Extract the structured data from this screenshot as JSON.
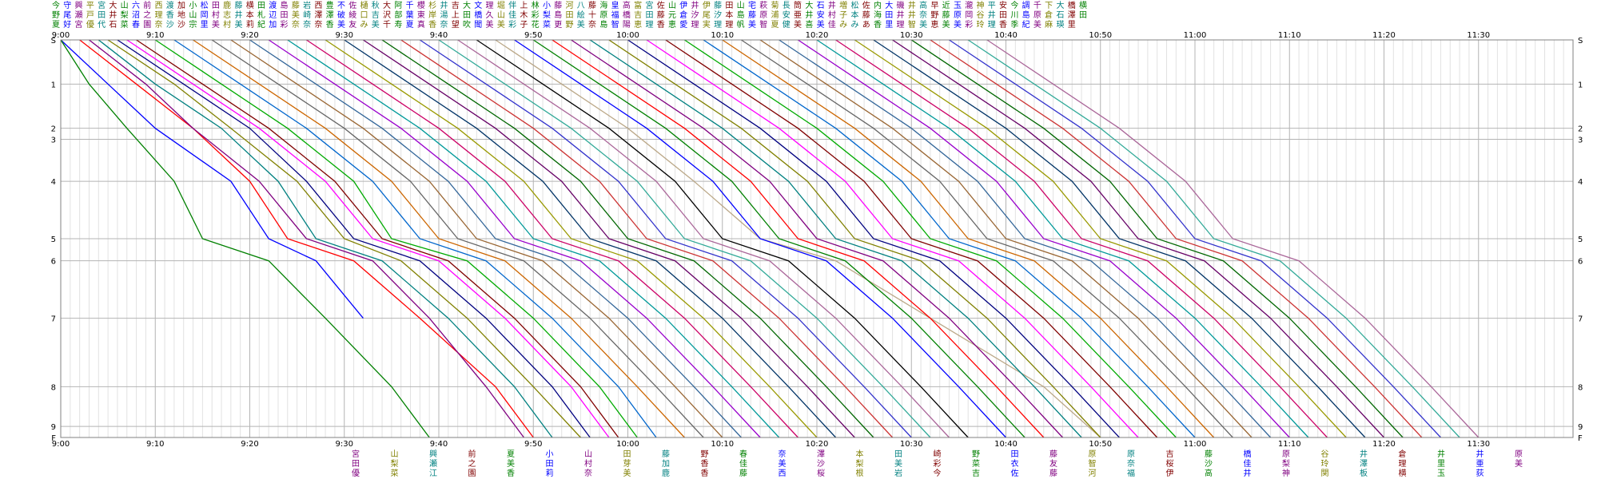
{
  "chart_data": {
    "type": "line",
    "title": "",
    "xlabel": "",
    "ylabel": "",
    "x_ticks": [
      "9:00",
      "9:10",
      "9:20",
      "9:30",
      "9:40",
      "9:50",
      "10:00",
      "10:10",
      "10:20",
      "10:30",
      "10:40",
      "10:50",
      "11:00",
      "11:10",
      "11:20",
      "11:30"
    ],
    "x_range_minutes": [
      0,
      160
    ],
    "y_stations": [
      {
        "label": "S",
        "pos": 0
      },
      {
        "label": "1",
        "pos": 1
      },
      {
        "label": "2",
        "pos": 2
      },
      {
        "label": "3",
        "pos": 2.25
      },
      {
        "label": "4",
        "pos": 3.2
      },
      {
        "label": "5",
        "pos": 4.5
      },
      {
        "label": "6",
        "pos": 5
      },
      {
        "label": "7",
        "pos": 6.3
      },
      {
        "label": "8",
        "pos": 7.85
      },
      {
        "label": "9",
        "pos": 8.75
      },
      {
        "label": "F",
        "pos": 9
      }
    ],
    "y_range": [
      0,
      9
    ],
    "grid": true,
    "top_name_labels": [
      "今",
      "野",
      "夏",
      "守",
      "尾",
      "好",
      "興",
      "瀬",
      "宮",
      "平",
      "戸",
      "優",
      "宮",
      "田",
      "代",
      "大",
      "井",
      "石",
      "山",
      "梨",
      "菜",
      "六",
      "沼",
      "春",
      "前",
      "之",
      "園",
      "西",
      "理",
      "奈",
      "渡",
      "香",
      "沙",
      "加",
      "地",
      "沙",
      "小",
      "山",
      "宗",
      "松",
      "岡",
      "里",
      "田",
      "村",
      "美",
      "鹿",
      "志",
      "村",
      "藤",
      "井",
      "美",
      "横",
      "本",
      "莉",
      "田",
      "札",
      "紀",
      "渡",
      "辺",
      "加",
      "島",
      "田",
      "彩",
      "藤",
      "美",
      "奈",
      "岩",
      "崎",
      "奈",
      "西",
      "澤",
      "奈",
      "豊",
      "澤",
      "香",
      "不",
      "破",
      "美",
      "佐",
      "綾",
      "友",
      "樋",
      "口",
      "み",
      "秋",
      "吉",
      "美",
      "大",
      "沢",
      "千",
      "阿",
      "部",
      "寿",
      "千",
      "葉",
      "夏",
      "櫻",
      "東",
      "真",
      "杉",
      "岸",
      "香",
      "井",
      "湯",
      "奈",
      "吉",
      "上",
      "望",
      "大",
      "田",
      "吹",
      "文",
      "橋",
      "聞",
      "理",
      "久",
      "美",
      "堀",
      "山",
      "美",
      "伴",
      "佳",
      "彩",
      "上",
      "木",
      "子",
      "林",
      "彩",
      "花",
      "小",
      "梨",
      "菜",
      "藤",
      "島",
      "更",
      "河",
      "田",
      "野",
      "八",
      "絵",
      "美",
      "藤",
      "十",
      "奈",
      "海",
      "原",
      "島",
      "皇",
      "福",
      "智",
      "高",
      "橋",
      "陽",
      "富",
      "吉",
      "恵",
      "宮",
      "田",
      "理",
      "佐",
      "藤",
      "香",
      "山",
      "元",
      "恵",
      "伊",
      "倉",
      "愛",
      "井",
      "汐",
      "理",
      "伊",
      "尾",
      "実",
      "藤",
      "汐",
      "理",
      "田",
      "本",
      "理",
      "山",
      "島",
      "帆",
      "宅",
      "藤",
      "美",
      "萩",
      "原",
      "智",
      "菊",
      "浦",
      "夏",
      "長",
      "安",
      "健",
      "筒",
      "亜",
      "美",
      "大",
      "井",
      "喜",
      "石",
      "安",
      "美",
      "井",
      "村",
      "佳",
      "増",
      "子",
      "み",
      "松",
      "本",
      "み",
      "佐",
      "藤",
      "あ",
      "内",
      "海",
      "香",
      "大",
      "田",
      "里",
      "磯",
      "井",
      "理",
      "井",
      "井",
      "智",
      "高",
      "奈",
      "美",
      "早",
      "野",
      "恵",
      "近",
      "藤",
      "美",
      "玉",
      "原",
      "美",
      "瀧",
      "岡",
      "彩",
      "神",
      "谷",
      "玲",
      "平",
      "井",
      "理",
      "安",
      "田",
      "香",
      "今",
      "川",
      "季",
      "調",
      "島",
      "紀",
      "千",
      "原",
      "美",
      "下",
      "倉",
      "麻",
      "大",
      "石",
      "瑛",
      "橋",
      "澤",
      "里",
      "横",
      "田"
    ],
    "bottom_name_labels": [
      "宮",
      "田",
      "優",
      "山",
      "梨",
      "菜",
      "興",
      "瀬",
      "江",
      "前",
      "之",
      "園",
      "夏",
      "美",
      "香",
      "小",
      "田",
      "莉",
      "山",
      "村",
      "奈",
      "田",
      "芽",
      "美",
      "藤",
      "加",
      "鹿",
      "野",
      "香",
      "香",
      "春",
      "佳",
      "藤",
      "奈",
      "美",
      "西",
      "澤",
      "沙",
      "桜",
      "本",
      "梨",
      "根",
      "田",
      "美",
      "岩",
      "崎",
      "彩",
      "今",
      "野",
      "菜",
      "吉",
      "田",
      "衣",
      "佐",
      "藤",
      "友",
      "藤",
      "原",
      "智",
      "河",
      "原",
      "奈",
      "福",
      "吉",
      "桜",
      "伊",
      "藤",
      "沙",
      "高",
      "橋",
      "佳",
      "井",
      "原",
      "梨",
      "神",
      "谷",
      "玲",
      "関",
      "井",
      "澤",
      "板",
      "倉",
      "理",
      "横",
      "井",
      "里",
      "玉",
      "井",
      "亜",
      "荻",
      "原",
      "美"
    ],
    "series": [
      {
        "color": "#0000ff",
        "times": [
          0,
          5,
          10,
          18,
          22,
          27,
          32
        ]
      },
      {
        "color": "#008000",
        "times": [
          0,
          3,
          7,
          12,
          15,
          22,
          28,
          35,
          39
        ]
      },
      {
        "color": "#ff0000",
        "times": [
          2,
          8,
          14,
          20,
          24,
          31,
          38,
          46,
          50
        ]
      },
      {
        "color": "#800080",
        "times": [
          3,
          9,
          14,
          21,
          26,
          33,
          39,
          45,
          49
        ]
      },
      {
        "color": "#008080",
        "times": [
          4,
          10,
          17,
          23,
          27,
          34,
          41,
          48,
          52
        ]
      },
      {
        "color": "#808000",
        "times": [
          5,
          12,
          18,
          25,
          30,
          36,
          43,
          50,
          55
        ]
      },
      {
        "color": "#000080",
        "times": [
          6,
          13,
          20,
          26,
          31,
          38,
          45,
          52,
          56
        ]
      },
      {
        "color": "#ff00ff",
        "times": [
          7,
          14,
          21,
          28,
          33,
          40,
          47,
          54,
          58
        ]
      },
      {
        "color": "#800000",
        "times": [
          8,
          15,
          22,
          29,
          34,
          41,
          48,
          55,
          59
        ]
      },
      {
        "color": "#00aa00",
        "times": [
          10,
          17,
          24,
          31,
          35,
          43,
          50,
          57,
          61
        ]
      },
      {
        "color": "#0066cc",
        "times": [
          12,
          19,
          26,
          33,
          38,
          45,
          52,
          59,
          63
        ]
      },
      {
        "color": "#cc6600",
        "times": [
          14,
          21,
          28,
          35,
          40,
          47,
          54,
          61,
          66
        ]
      },
      {
        "color": "#666666",
        "times": [
          16,
          23,
          30,
          37,
          42,
          49,
          56,
          63,
          68
        ]
      },
      {
        "color": "#996633",
        "times": [
          18,
          25,
          32,
          39,
          44,
          51,
          58,
          65,
          70
        ]
      },
      {
        "color": "#336699",
        "times": [
          20,
          27,
          34,
          41,
          46,
          53,
          60,
          67,
          72
        ]
      },
      {
        "color": "#9900cc",
        "times": [
          22,
          29,
          36,
          43,
          48,
          55,
          62,
          69,
          74
        ]
      },
      {
        "color": "#009999",
        "times": [
          24,
          31,
          38,
          45,
          50,
          57,
          64,
          71,
          76
        ]
      },
      {
        "color": "#cc0066",
        "times": [
          26,
          33,
          40,
          47,
          52,
          59,
          66,
          73,
          78
        ]
      },
      {
        "color": "#999900",
        "times": [
          28,
          35,
          42,
          49,
          54,
          61,
          68,
          75,
          80
        ]
      },
      {
        "color": "#003366",
        "times": [
          30,
          37,
          44,
          51,
          56,
          63,
          70,
          77,
          82
        ]
      },
      {
        "color": "#660066",
        "times": [
          32,
          39,
          46,
          53,
          58,
          65,
          72,
          79,
          84
        ]
      },
      {
        "color": "#006600",
        "times": [
          34,
          41,
          48,
          55,
          60,
          67,
          74,
          81,
          86
        ]
      },
      {
        "color": "#cc3333",
        "times": [
          36,
          43,
          50,
          57,
          62,
          69,
          76,
          83,
          88
        ]
      },
      {
        "color": "#3333cc",
        "times": [
          38,
          45,
          52,
          59,
          64,
          71,
          78,
          85,
          90
        ]
      },
      {
        "color": "#33aa99",
        "times": [
          40,
          47,
          54,
          61,
          66,
          73,
          80,
          87,
          92
        ]
      },
      {
        "color": "#aa6699",
        "times": [
          42,
          49,
          56,
          63,
          68,
          75,
          82,
          89,
          94
        ]
      },
      {
        "color": "#000000",
        "times": [
          44,
          51,
          58,
          65,
          70,
          77,
          84,
          91,
          96
        ]
      },
      {
        "color": "#bba888",
        "times": [
          46,
          53,
          60,
          67,
          74,
          82,
          92,
          104,
          110
        ]
      },
      {
        "color": "#0000ff",
        "times": [
          48,
          55,
          62,
          69,
          74,
          81,
          88,
          95,
          100
        ]
      },
      {
        "color": "#008000",
        "times": [
          50,
          57,
          64,
          71,
          76,
          83,
          90,
          97,
          102
        ]
      },
      {
        "color": "#ff0000",
        "times": [
          52,
          59,
          66,
          73,
          78,
          85,
          92,
          99,
          104
        ]
      },
      {
        "color": "#800080",
        "times": [
          54,
          61,
          68,
          75,
          80,
          87,
          94,
          101,
          106
        ]
      },
      {
        "color": "#008080",
        "times": [
          56,
          63,
          70,
          77,
          82,
          89,
          96,
          103,
          108
        ]
      },
      {
        "color": "#808000",
        "times": [
          58,
          65,
          72,
          79,
          84,
          91,
          98,
          105,
          110
        ]
      },
      {
        "color": "#000080",
        "times": [
          60,
          67,
          74,
          81,
          86,
          93,
          100,
          107,
          112
        ]
      },
      {
        "color": "#ff00ff",
        "times": [
          62,
          69,
          76,
          83,
          88,
          95,
          102,
          109,
          114
        ]
      },
      {
        "color": "#800000",
        "times": [
          64,
          71,
          78,
          85,
          90,
          97,
          104,
          111,
          116
        ]
      },
      {
        "color": "#00aa00",
        "times": [
          66,
          73,
          80,
          87,
          92,
          99,
          106,
          113,
          118
        ]
      },
      {
        "color": "#0066cc",
        "times": [
          68,
          75,
          82,
          89,
          94,
          101,
          108,
          115,
          120
        ]
      },
      {
        "color": "#cc6600",
        "times": [
          70,
          77,
          84,
          91,
          96,
          103,
          110,
          117,
          122
        ]
      },
      {
        "color": "#666666",
        "times": [
          72,
          79,
          86,
          93,
          98,
          105,
          112,
          119,
          124
        ]
      },
      {
        "color": "#996633",
        "times": [
          74,
          81,
          88,
          95,
          100,
          107,
          114,
          121,
          126
        ]
      },
      {
        "color": "#336699",
        "times": [
          76,
          83,
          90,
          97,
          102,
          109,
          116,
          123,
          128
        ]
      },
      {
        "color": "#9900cc",
        "times": [
          78,
          85,
          92,
          99,
          104,
          111,
          118,
          125,
          130
        ]
      },
      {
        "color": "#009999",
        "times": [
          80,
          87,
          94,
          101,
          106,
          113,
          120,
          127,
          132
        ]
      },
      {
        "color": "#cc0066",
        "times": [
          82,
          89,
          96,
          103,
          108,
          115,
          122,
          129,
          134
        ]
      },
      {
        "color": "#999900",
        "times": [
          84,
          91,
          98,
          105,
          110,
          117,
          124,
          131,
          136
        ]
      },
      {
        "color": "#003366",
        "times": [
          86,
          93,
          100,
          107,
          112,
          119,
          126,
          133,
          138
        ]
      },
      {
        "color": "#660066",
        "times": [
          88,
          95,
          102,
          109,
          114,
          121,
          128,
          135,
          140
        ]
      },
      {
        "color": "#006600",
        "times": [
          90,
          97,
          104,
          111,
          116,
          123,
          130,
          137,
          142
        ]
      },
      {
        "color": "#cc3333",
        "times": [
          92,
          99,
          106,
          113,
          118,
          125,
          132,
          139,
          144
        ]
      },
      {
        "color": "#3333cc",
        "times": [
          94,
          101,
          108,
          115,
          120,
          127,
          134,
          141,
          146
        ]
      },
      {
        "color": "#33aa99",
        "times": [
          96,
          103,
          110,
          117,
          122,
          129,
          136,
          143,
          148
        ]
      },
      {
        "color": "#aa6699",
        "times": [
          98,
          105,
          112,
          119,
          124,
          131,
          138,
          145,
          150
        ]
      }
    ]
  }
}
